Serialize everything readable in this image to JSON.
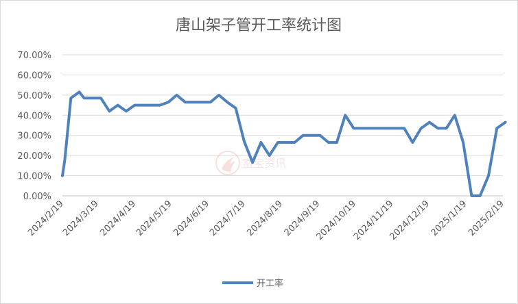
{
  "chart_data": {
    "type": "line",
    "title": "唐山架子管开工率统计图",
    "xlabel": "",
    "ylabel": "",
    "ylim": [
      0,
      70
    ],
    "yticks": [
      "0.00%",
      "10.00%",
      "20.00%",
      "30.00%",
      "40.00%",
      "50.00%",
      "60.00%",
      "70.00%"
    ],
    "xticks": [
      "2024/2/19",
      "2024/3/19",
      "2024/4/19",
      "2024/5/19",
      "2024/6/19",
      "2024/7/19",
      "2024/8/19",
      "2024/9/19",
      "2024/10/19",
      "2024/11/19",
      "2024/12/19",
      "2025/1/19",
      "2025/2/19"
    ],
    "grid": true,
    "legend_position": "bottom",
    "series": [
      {
        "name": "开工率",
        "color": "#4f81bd",
        "points": [
          [
            "2024-02-19",
            10.0
          ],
          [
            "2024-02-21",
            18.0
          ],
          [
            "2024-02-26",
            48.5
          ],
          [
            "2024-03-04",
            51.5
          ],
          [
            "2024-03-08",
            48.5
          ],
          [
            "2024-03-15",
            48.5
          ],
          [
            "2024-03-22",
            48.5
          ],
          [
            "2024-03-29",
            42.0
          ],
          [
            "2024-04-05",
            45.0
          ],
          [
            "2024-04-12",
            42.0
          ],
          [
            "2024-04-19",
            45.0
          ],
          [
            "2024-04-26",
            45.0
          ],
          [
            "2024-05-03",
            45.0
          ],
          [
            "2024-05-10",
            45.0
          ],
          [
            "2024-05-17",
            46.5
          ],
          [
            "2024-05-24",
            50.0
          ],
          [
            "2024-05-31",
            46.5
          ],
          [
            "2024-06-07",
            46.5
          ],
          [
            "2024-06-14",
            46.5
          ],
          [
            "2024-06-21",
            46.5
          ],
          [
            "2024-06-28",
            50.0
          ],
          [
            "2024-07-05",
            46.5
          ],
          [
            "2024-07-12",
            43.5
          ],
          [
            "2024-07-19",
            27.0
          ],
          [
            "2024-07-26",
            16.5
          ],
          [
            "2024-08-02",
            26.5
          ],
          [
            "2024-08-09",
            20.0
          ],
          [
            "2024-08-16",
            26.5
          ],
          [
            "2024-08-23",
            26.5
          ],
          [
            "2024-08-30",
            26.5
          ],
          [
            "2024-09-06",
            30.0
          ],
          [
            "2024-09-13",
            30.0
          ],
          [
            "2024-09-20",
            30.0
          ],
          [
            "2024-09-27",
            26.5
          ],
          [
            "2024-10-04",
            26.5
          ],
          [
            "2024-10-11",
            40.0
          ],
          [
            "2024-10-18",
            33.5
          ],
          [
            "2024-10-25",
            33.5
          ],
          [
            "2024-11-01",
            33.5
          ],
          [
            "2024-11-08",
            33.5
          ],
          [
            "2024-11-15",
            33.5
          ],
          [
            "2024-11-22",
            33.5
          ],
          [
            "2024-11-29",
            33.5
          ],
          [
            "2024-12-06",
            26.5
          ],
          [
            "2024-12-13",
            33.5
          ],
          [
            "2024-12-20",
            36.5
          ],
          [
            "2024-12-27",
            33.5
          ],
          [
            "2025-01-03",
            33.5
          ],
          [
            "2025-01-10",
            40.0
          ],
          [
            "2025-01-17",
            26.5
          ],
          [
            "2025-01-24",
            0.0
          ],
          [
            "2025-01-31",
            0.0
          ],
          [
            "2025-02-07",
            10.0
          ],
          [
            "2025-02-14",
            33.5
          ],
          [
            "2025-02-21",
            36.5
          ]
        ]
      }
    ]
  },
  "watermark_text": "富宝资讯"
}
